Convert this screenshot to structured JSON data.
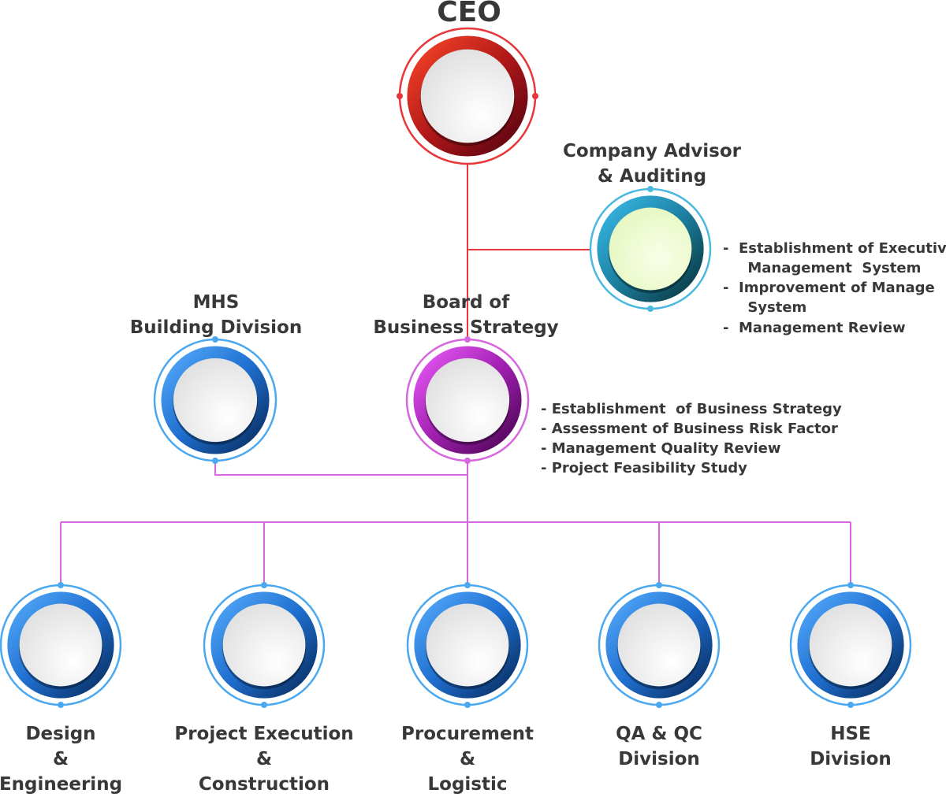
{
  "colors": {
    "red_line": "#e8363a",
    "purple_line": "#d667df",
    "blue_outline": "#4aa8f0",
    "text": "#383838"
  },
  "nodes": {
    "ceo": {
      "label": "CEO",
      "theme": "red"
    },
    "advisor": {
      "label_lines": [
        "Company Advisor",
        "& Auditing"
      ],
      "theme": "teal",
      "bullets": [
        "-  Establishment of Executive",
        "     Management  System",
        "-  Improvement of Manage",
        "     System",
        "-  Management Review"
      ]
    },
    "mhs": {
      "label_lines": [
        "MHS",
        "Building Division"
      ],
      "theme": "blue"
    },
    "board": {
      "label_lines": [
        "Board of",
        "Business Strategy"
      ],
      "theme": "magenta",
      "bullets": [
        "- Establishment  of Business Strategy",
        "- Assessment of Business Risk Factor",
        "- Management Quality Review",
        "- Project Feasibility Study"
      ]
    },
    "divisions": [
      {
        "label_lines": [
          "Design",
          "&",
          "Engineering"
        ]
      },
      {
        "label_lines": [
          "Project Execution",
          "&",
          "Construction"
        ]
      },
      {
        "label_lines": [
          "Procurement",
          "&",
          "Logistic"
        ]
      },
      {
        "label_lines": [
          "QA & QC",
          "Division"
        ]
      },
      {
        "label_lines": [
          "HSE",
          "Division"
        ]
      }
    ]
  }
}
